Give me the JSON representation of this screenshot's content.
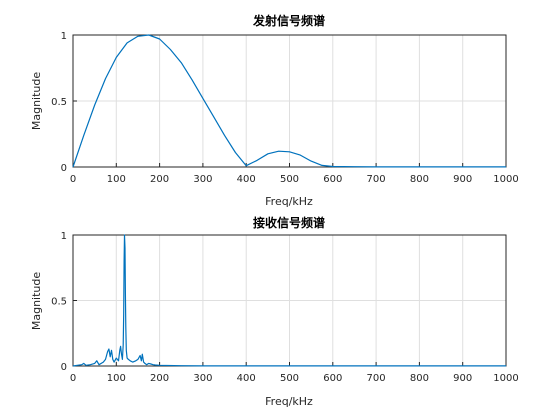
{
  "chart_data": [
    {
      "type": "line",
      "title": "发射信号频谱",
      "xlabel": "Freq/kHz",
      "ylabel": "Magnitude",
      "xlim": [
        0,
        1000
      ],
      "ylim": [
        0,
        1
      ],
      "xticks": [
        "0",
        "100",
        "200",
        "300",
        "400",
        "500",
        "600",
        "700",
        "800",
        "900",
        "1000"
      ],
      "yticks": [
        "0",
        "0.5",
        "1"
      ],
      "grid": true,
      "line_color": "#0072bd",
      "x": [
        0,
        25,
        50,
        75,
        100,
        125,
        150,
        175,
        200,
        225,
        250,
        275,
        300,
        325,
        350,
        375,
        400,
        425,
        450,
        475,
        500,
        525,
        550,
        575,
        600,
        650,
        700,
        750,
        800,
        850,
        900,
        950,
        1000
      ],
      "y": [
        0,
        0.24,
        0.47,
        0.67,
        0.83,
        0.94,
        0.99,
        1.0,
        0.97,
        0.89,
        0.79,
        0.66,
        0.52,
        0.38,
        0.24,
        0.11,
        0.01,
        0.05,
        0.1,
        0.12,
        0.115,
        0.09,
        0.045,
        0.012,
        0.004,
        0.002,
        0.001,
        0.001,
        0.001,
        0.001,
        0.001,
        0.001,
        0.001
      ]
    },
    {
      "type": "line",
      "title": "接收信号频谱",
      "xlabel": "Freq/kHz",
      "ylabel": "Magnitude",
      "xlim": [
        0,
        1000
      ],
      "ylim": [
        0,
        1
      ],
      "xticks": [
        "0",
        "100",
        "200",
        "300",
        "400",
        "500",
        "600",
        "700",
        "800",
        "900",
        "1000"
      ],
      "yticks": [
        "0",
        "0.5",
        "1"
      ],
      "grid": true,
      "line_color": "#0072bd",
      "x": [
        0,
        10,
        20,
        25,
        30,
        40,
        50,
        55,
        60,
        70,
        75,
        80,
        83,
        86,
        89,
        92,
        95,
        100,
        105,
        108,
        110,
        112,
        114,
        116,
        117,
        118,
        119,
        120,
        121,
        122,
        123,
        125,
        128,
        132,
        138,
        145,
        150,
        155,
        158,
        160,
        163,
        166,
        170,
        175,
        180,
        185,
        190,
        200,
        250,
        300,
        400,
        500,
        600,
        700,
        800,
        900,
        1000
      ],
      "y": [
        0.0,
        0.005,
        0.01,
        0.02,
        0.005,
        0.01,
        0.02,
        0.04,
        0.01,
        0.03,
        0.05,
        0.11,
        0.13,
        0.07,
        0.12,
        0.05,
        0.03,
        0.06,
        0.04,
        0.12,
        0.15,
        0.09,
        0.05,
        0.16,
        0.4,
        0.8,
        1.0,
        0.9,
        0.55,
        0.3,
        0.12,
        0.06,
        0.05,
        0.04,
        0.03,
        0.04,
        0.05,
        0.08,
        0.04,
        0.09,
        0.03,
        0.02,
        0.01,
        0.02,
        0.015,
        0.01,
        0.008,
        0.005,
        0.002,
        0.001,
        0.001,
        0.001,
        0.001,
        0.001,
        0.001,
        0.001,
        0.001
      ]
    }
  ]
}
